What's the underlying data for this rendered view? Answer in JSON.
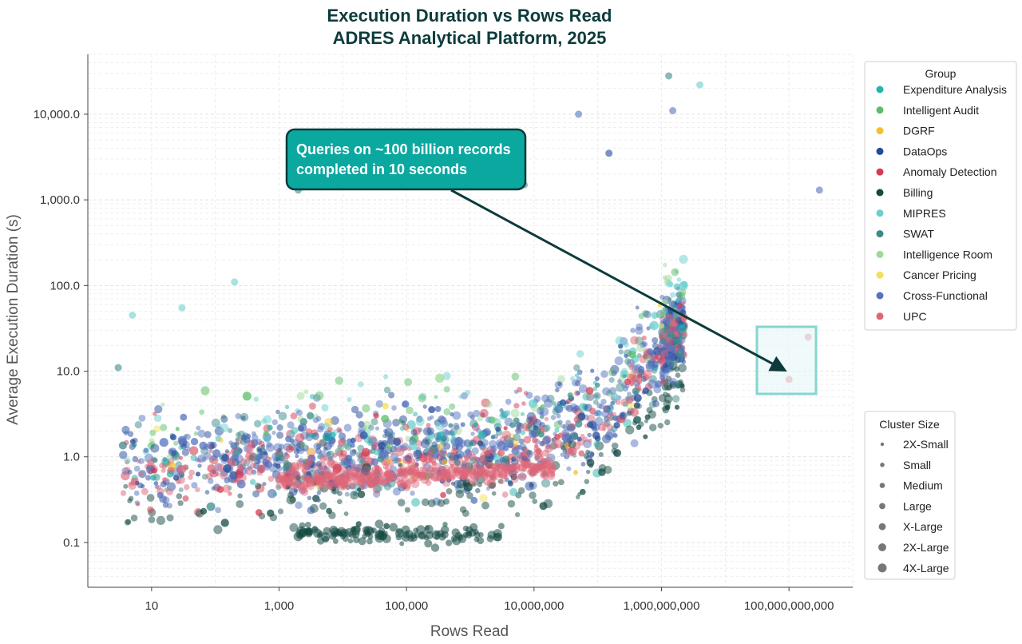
{
  "chart_data": {
    "type": "scatter",
    "title": [
      "Execution Duration vs Rows Read",
      "ADRES Analytical Platform, 2025"
    ],
    "xlabel": "Rows Read",
    "ylabel": "Average Execution Duration (s)",
    "xscale": "log",
    "yscale": "log",
    "xlim": [
      1,
      1000000000000
    ],
    "ylim": [
      0.03,
      50000
    ],
    "x_ticks": [
      {
        "value": 10,
        "label": "10"
      },
      {
        "value": 1000,
        "label": "1,000"
      },
      {
        "value": 100000,
        "label": "100,000"
      },
      {
        "value": 10000000,
        "label": "10,000,000"
      },
      {
        "value": 1000000000,
        "label": "1,000,000,000"
      },
      {
        "value": 100000000000,
        "label": "100,000,000,000"
      }
    ],
    "y_ticks": [
      {
        "value": 0.1,
        "label": "0.1"
      },
      {
        "value": 1,
        "label": "1.0"
      },
      {
        "value": 10,
        "label": "10.0"
      },
      {
        "value": 100,
        "label": "100.0"
      },
      {
        "value": 1000,
        "label": "1,000.0"
      },
      {
        "value": 10000,
        "label": "10,000.0"
      }
    ],
    "grid": true,
    "legend": {
      "title": "Group",
      "position": "right-top",
      "entries": [
        {
          "name": "Expenditure Analysis",
          "color": "#26b5ad"
        },
        {
          "name": "Intelligent Audit",
          "color": "#5cbd6a"
        },
        {
          "name": "DGRF",
          "color": "#f2c12e"
        },
        {
          "name": "DataOps",
          "color": "#234a9a"
        },
        {
          "name": "Anomaly Detection",
          "color": "#d63a52"
        },
        {
          "name": "Billing",
          "color": "#144a44"
        },
        {
          "name": "MIPRES",
          "color": "#6ccfcf"
        },
        {
          "name": "SWAT",
          "color": "#3d8a8a"
        },
        {
          "name": "Intelligence Room",
          "color": "#9fd99a"
        },
        {
          "name": "Cancer Pricing",
          "color": "#f4df5c"
        },
        {
          "name": "Cross-Functional",
          "color": "#5673bd"
        },
        {
          "name": "UPC",
          "color": "#de6677"
        }
      ]
    },
    "size_legend": {
      "title": "Cluster Size",
      "position": "right-bottom",
      "entries": [
        "2X-Small",
        "Small",
        "Medium",
        "Large",
        "X-Large",
        "2X-Large",
        "4X-Large"
      ]
    },
    "series_clouds": [
      {
        "group": "Cross-Functional",
        "x_range": [
          10,
          500000000000
        ],
        "y_range": [
          0.1,
          3000
        ],
        "trend": "rising"
      },
      {
        "group": "DataOps",
        "x_range": [
          10,
          500000000000
        ],
        "y_range": [
          0.1,
          2000
        ],
        "trend": "rising"
      },
      {
        "group": "UPC",
        "x_range": [
          10,
          5000000000
        ],
        "y_range": [
          0.05,
          100
        ],
        "trend": "flat-then-rising"
      },
      {
        "group": "Billing",
        "x_range": [
          1000,
          5000000000
        ],
        "y_range": [
          0.1,
          20
        ],
        "trend": "rising"
      },
      {
        "group": "SWAT",
        "x_range": [
          10,
          5000000000
        ],
        "y_range": [
          0.2,
          1000
        ],
        "trend": "rising"
      }
    ],
    "outliers": [
      {
        "x": 2000,
        "y": 1300,
        "group": "SWAT"
      },
      {
        "x": 7000000,
        "y": 1500,
        "group": "SWAT"
      },
      {
        "x": 1300000000,
        "y": 28000,
        "group": "SWAT"
      },
      {
        "x": 4000000000,
        "y": 22000,
        "group": "MIPRES"
      },
      {
        "x": 150000000,
        "y": 3500,
        "group": "DataOps"
      },
      {
        "x": 1500000000,
        "y": 11000,
        "group": "Cross-Functional"
      },
      {
        "x": 50000000,
        "y": 10000,
        "group": "Cross-Functional"
      },
      {
        "x": 3,
        "y": 11,
        "group": "SWAT"
      },
      {
        "x": 5,
        "y": 45,
        "group": "MIPRES"
      },
      {
        "x": 30,
        "y": 55,
        "group": "MIPRES"
      },
      {
        "x": 200,
        "y": 110,
        "group": "MIPRES"
      },
      {
        "x": 100000000000,
        "y": 8,
        "group": "UPC"
      },
      {
        "x": 200000000000,
        "y": 25,
        "group": "UPC"
      },
      {
        "x": 300000000000,
        "y": 1300,
        "group": "Cross-Functional"
      }
    ],
    "annotation": {
      "text": [
        "Queries on ~100 billion records",
        "completed in 10 seconds"
      ],
      "box_color": "#0ba8a0",
      "target": {
        "x": 200000000000,
        "y": 9
      },
      "highlight": {
        "x_range": [
          80000000000,
          600000000000
        ],
        "y_range": [
          5,
          30
        ]
      }
    }
  }
}
